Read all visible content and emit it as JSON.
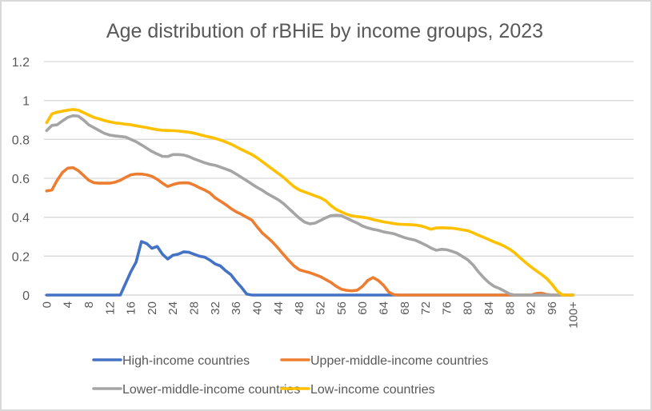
{
  "chart_data": {
    "type": "line",
    "title": "Age distribution of rBHiE by income groups, 2023",
    "xlabel": "",
    "ylabel": "",
    "ylim": [
      0,
      1.2
    ],
    "y_ticks": [
      "0",
      "0.2",
      "0.4",
      "0.6",
      "0.8",
      "1",
      "1.2"
    ],
    "y_tick_values": [
      0,
      0.2,
      0.4,
      0.6,
      0.8,
      1.0,
      1.2
    ],
    "grid": true,
    "legend_position": "bottom",
    "x_categories": [
      "0",
      "1",
      "2",
      "3",
      "4",
      "5",
      "6",
      "7",
      "8",
      "9",
      "10",
      "11",
      "12",
      "13",
      "14",
      "15",
      "16",
      "17",
      "18",
      "19",
      "20",
      "21",
      "22",
      "23",
      "24",
      "25",
      "26",
      "27",
      "28",
      "29",
      "30",
      "31",
      "32",
      "33",
      "34",
      "35",
      "36",
      "37",
      "38",
      "39",
      "40",
      "41",
      "42",
      "43",
      "44",
      "45",
      "46",
      "47",
      "48",
      "49",
      "50",
      "51",
      "52",
      "53",
      "54",
      "55",
      "56",
      "57",
      "58",
      "59",
      "60",
      "61",
      "62",
      "63",
      "64",
      "65",
      "66",
      "67",
      "68",
      "69",
      "70",
      "71",
      "72",
      "73",
      "74",
      "75",
      "76",
      "77",
      "78",
      "79",
      "80",
      "81",
      "82",
      "83",
      "84",
      "85",
      "86",
      "87",
      "88",
      "89",
      "90",
      "91",
      "92",
      "93",
      "94",
      "95",
      "96",
      "97",
      "98",
      "99",
      "100+"
    ],
    "x_tick_labels": [
      "0",
      "4",
      "8",
      "12",
      "16",
      "20",
      "24",
      "28",
      "32",
      "36",
      "40",
      "44",
      "48",
      "52",
      "56",
      "60",
      "64",
      "68",
      "72",
      "76",
      "80",
      "84",
      "88",
      "92",
      "96",
      "100+"
    ],
    "series": [
      {
        "name": "High-income countries",
        "color": "#4472c4",
        "values": [
          0,
          0,
          0,
          0,
          0,
          0,
          0,
          0,
          0,
          0,
          0,
          0,
          0,
          0,
          0,
          0.06,
          0.12,
          0.17,
          0.275,
          0.265,
          0.24,
          0.25,
          0.21,
          0.185,
          0.205,
          0.21,
          0.222,
          0.22,
          0.21,
          0.2,
          0.195,
          0.18,
          0.16,
          0.15,
          0.125,
          0.105,
          0.07,
          0.04,
          0.005,
          0,
          0,
          0,
          0,
          0,
          0,
          0,
          0,
          0,
          0,
          0,
          0,
          0,
          0,
          0,
          0,
          0,
          0,
          0,
          0,
          0,
          0,
          0,
          0,
          0,
          0,
          0,
          0,
          0,
          0,
          0,
          0,
          0,
          0,
          0,
          0,
          0,
          0,
          0,
          0,
          0,
          0,
          0,
          0,
          0,
          0,
          0,
          0,
          0,
          0,
          0,
          0,
          0,
          0,
          0,
          0,
          0,
          0,
          0,
          0,
          0,
          0
        ]
      },
      {
        "name": "Upper-middle-income countries",
        "color": "#ed7d31",
        "values": [
          0.535,
          0.54,
          0.59,
          0.63,
          0.652,
          0.655,
          0.64,
          0.615,
          0.59,
          0.577,
          0.575,
          0.575,
          0.575,
          0.58,
          0.59,
          0.605,
          0.618,
          0.622,
          0.622,
          0.618,
          0.61,
          0.595,
          0.575,
          0.558,
          0.568,
          0.575,
          0.577,
          0.576,
          0.566,
          0.552,
          0.54,
          0.525,
          0.5,
          0.483,
          0.465,
          0.445,
          0.428,
          0.415,
          0.4,
          0.385,
          0.35,
          0.318,
          0.295,
          0.27,
          0.24,
          0.208,
          0.178,
          0.15,
          0.13,
          0.122,
          0.115,
          0.105,
          0.095,
          0.08,
          0.065,
          0.045,
          0.03,
          0.024,
          0.022,
          0.025,
          0.045,
          0.075,
          0.09,
          0.075,
          0.05,
          0.015,
          0.002,
          0,
          0,
          0,
          0,
          0,
          0,
          0,
          0,
          0,
          0,
          0,
          0,
          0,
          0,
          0,
          0,
          0,
          0,
          0,
          0,
          0,
          0,
          0,
          0,
          0,
          0,
          0.008,
          0.01,
          0.003,
          0,
          0,
          0,
          0,
          0
        ]
      },
      {
        "name": "Lower-middle-income countries",
        "color": "#a5a5a5",
        "values": [
          0.845,
          0.872,
          0.875,
          0.895,
          0.913,
          0.922,
          0.92,
          0.9,
          0.875,
          0.86,
          0.845,
          0.831,
          0.822,
          0.818,
          0.815,
          0.812,
          0.8,
          0.788,
          0.772,
          0.755,
          0.738,
          0.725,
          0.713,
          0.712,
          0.722,
          0.722,
          0.72,
          0.712,
          0.7,
          0.69,
          0.68,
          0.672,
          0.667,
          0.658,
          0.648,
          0.638,
          0.622,
          0.605,
          0.588,
          0.57,
          0.553,
          0.538,
          0.52,
          0.505,
          0.49,
          0.47,
          0.445,
          0.42,
          0.395,
          0.375,
          0.366,
          0.37,
          0.383,
          0.397,
          0.408,
          0.41,
          0.408,
          0.395,
          0.382,
          0.37,
          0.355,
          0.345,
          0.338,
          0.333,
          0.325,
          0.32,
          0.315,
          0.305,
          0.295,
          0.288,
          0.282,
          0.27,
          0.257,
          0.242,
          0.23,
          0.235,
          0.233,
          0.225,
          0.215,
          0.198,
          0.181,
          0.155,
          0.12,
          0.09,
          0.064,
          0.045,
          0.034,
          0.02,
          0.005,
          0,
          0,
          0,
          0,
          0,
          0,
          0,
          0,
          0,
          0,
          0,
          0
        ]
      },
      {
        "name": "Low-income countries",
        "color": "#ffc000",
        "values": [
          0.886,
          0.931,
          0.94,
          0.945,
          0.95,
          0.954,
          0.95,
          0.938,
          0.925,
          0.913,
          0.905,
          0.897,
          0.89,
          0.885,
          0.882,
          0.878,
          0.875,
          0.87,
          0.865,
          0.861,
          0.855,
          0.85,
          0.847,
          0.846,
          0.845,
          0.843,
          0.84,
          0.837,
          0.832,
          0.825,
          0.818,
          0.812,
          0.805,
          0.797,
          0.787,
          0.776,
          0.762,
          0.748,
          0.735,
          0.722,
          0.705,
          0.685,
          0.665,
          0.645,
          0.625,
          0.605,
          0.58,
          0.557,
          0.54,
          0.53,
          0.52,
          0.51,
          0.5,
          0.485,
          0.46,
          0.44,
          0.427,
          0.415,
          0.407,
          0.403,
          0.4,
          0.396,
          0.388,
          0.382,
          0.376,
          0.372,
          0.367,
          0.364,
          0.363,
          0.362,
          0.36,
          0.356,
          0.348,
          0.338,
          0.345,
          0.346,
          0.345,
          0.344,
          0.34,
          0.335,
          0.331,
          0.32,
          0.308,
          0.297,
          0.285,
          0.273,
          0.263,
          0.25,
          0.235,
          0.215,
          0.19,
          0.167,
          0.145,
          0.125,
          0.106,
          0.085,
          0.055,
          0.02,
          0,
          0,
          0
        ]
      }
    ]
  }
}
